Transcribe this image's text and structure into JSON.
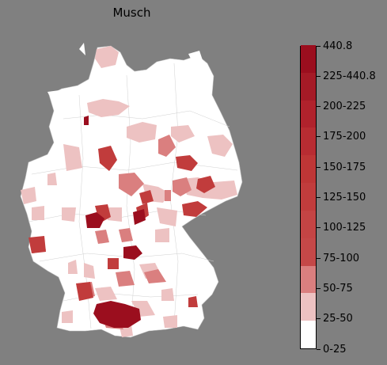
{
  "title": "Musch",
  "legend": {
    "labels": [
      "0-25",
      "25-50",
      "50-75",
      "75-100",
      "100-125",
      "125-150",
      "150-175",
      "175-200",
      "200-225",
      "225-440.8",
      "440.8"
    ],
    "bins": [
      {
        "label": "0-25",
        "color": "#ffffff"
      },
      {
        "label": "25-50",
        "color": "#edc2c2"
      },
      {
        "label": "50-75",
        "color": "#da7f7f"
      },
      {
        "label": "75-100",
        "color": "#c54848"
      },
      {
        "label": "100-125",
        "color": "#c44444"
      },
      {
        "label": "125-150",
        "color": "#c13c3c"
      },
      {
        "label": "150-175",
        "color": "#be3636"
      },
      {
        "label": "175-200",
        "color": "#b82c32"
      },
      {
        "label": "200-225",
        "color": "#b0222c"
      },
      {
        "label": "225-440.8",
        "color": "#a51a26"
      },
      {
        "label": "440.8",
        "color": "#9b0e1e"
      }
    ]
  },
  "colors": {
    "background": "#808080",
    "land": "#ffffff",
    "border": "#bdbdbd"
  }
}
